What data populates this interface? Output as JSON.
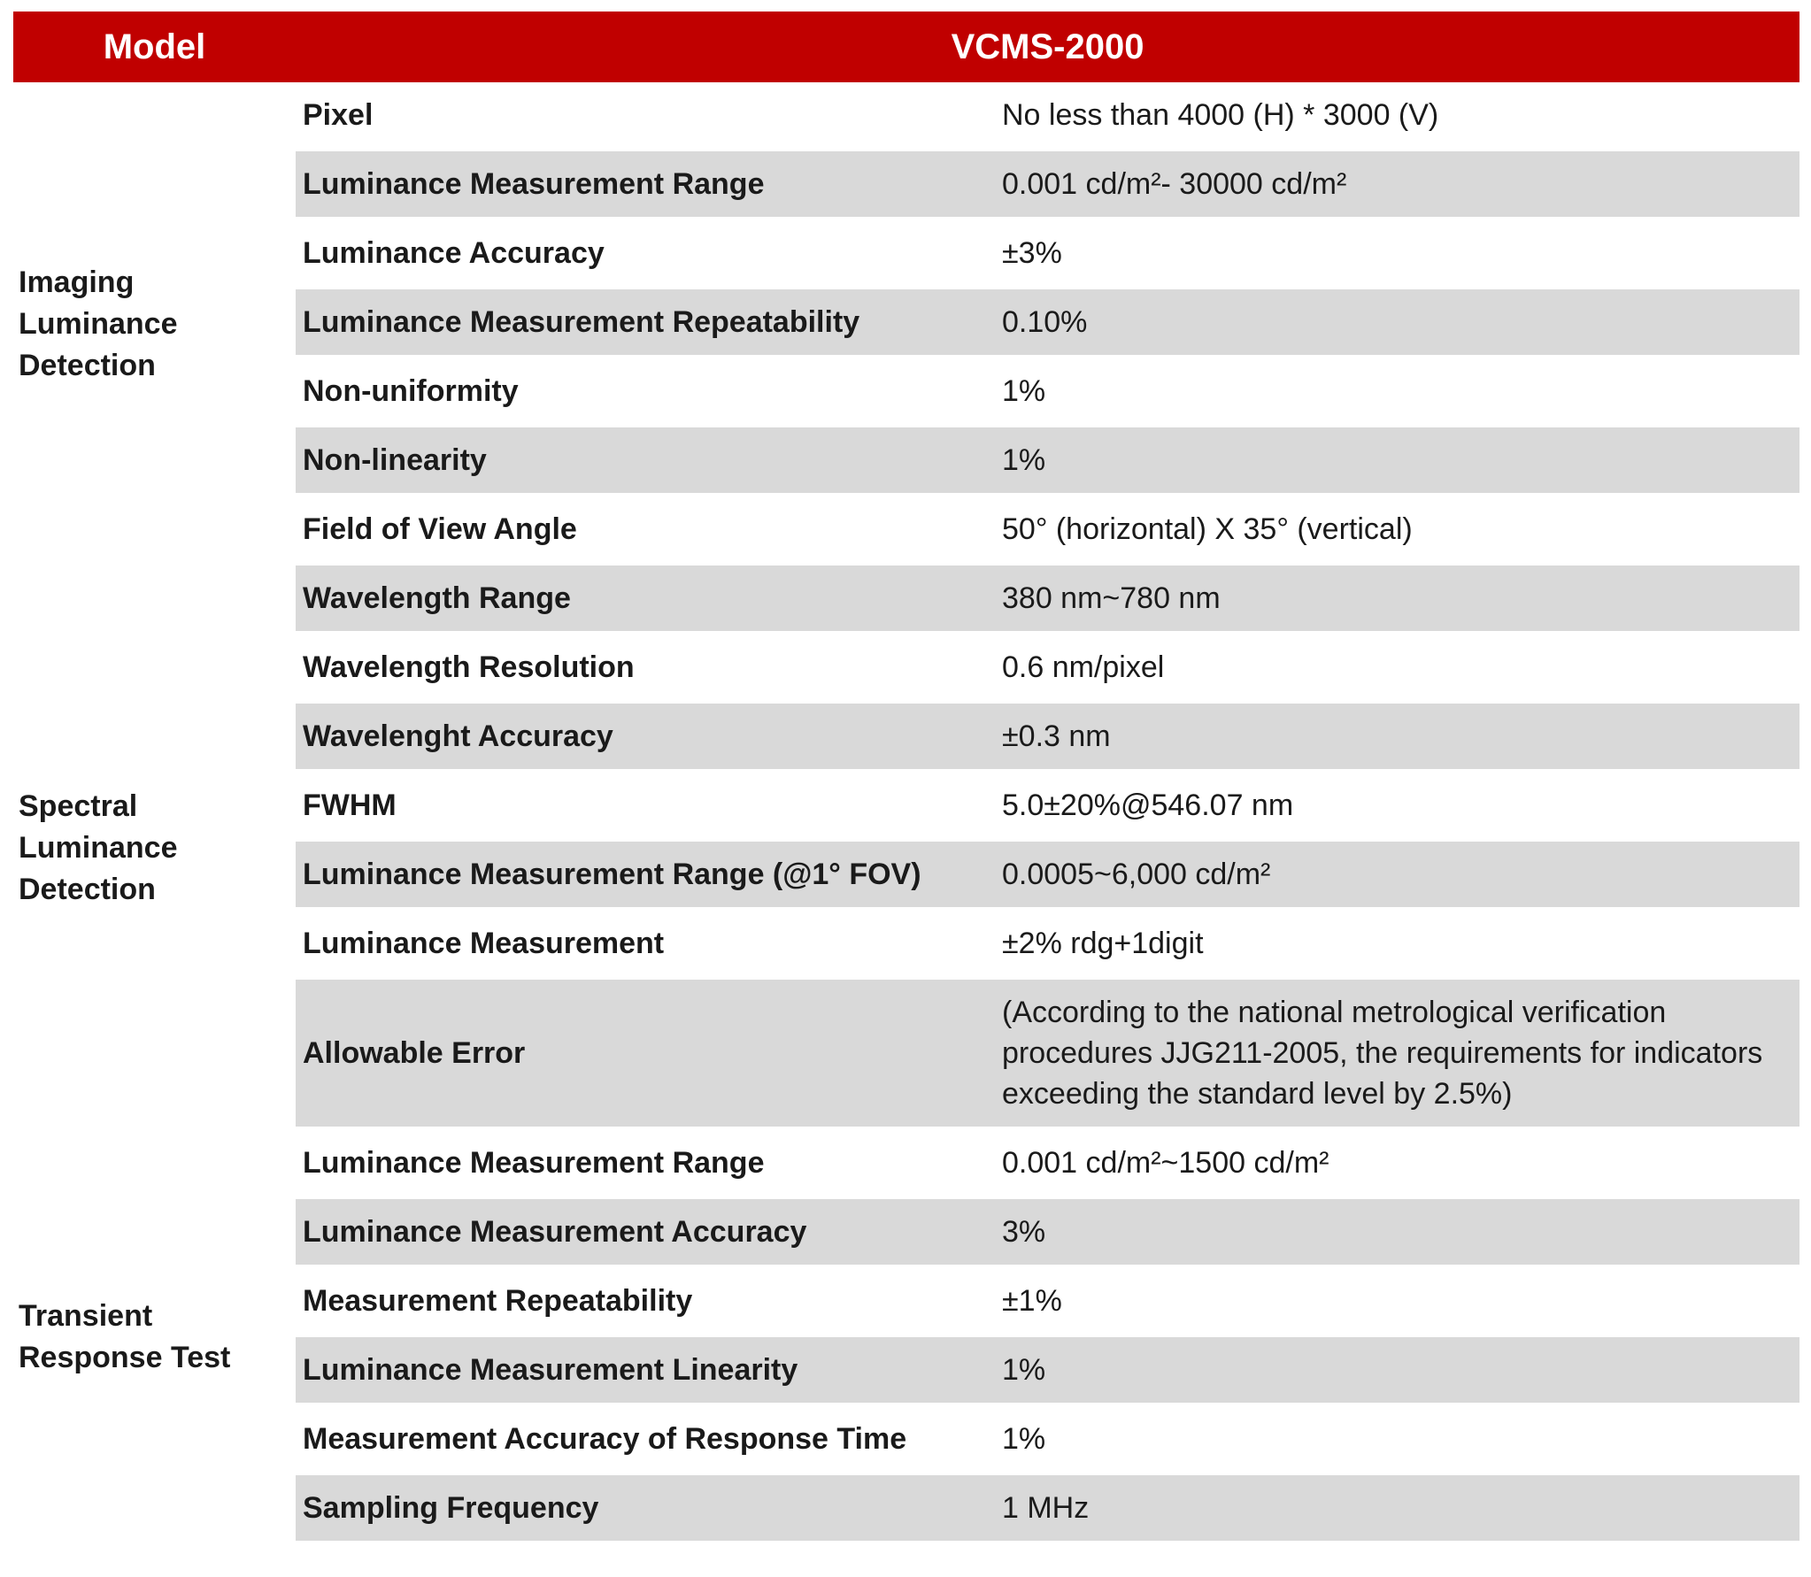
{
  "header": {
    "model_label": "Model",
    "model_value": "VCMS-2000"
  },
  "colors": {
    "header_bg": "#C00000",
    "header_text": "#FFFFFF",
    "row_shade": "#D9D9D9",
    "text": "#1A1A1A"
  },
  "table": {
    "sections": [
      {
        "label": "Imaging Luminance Detection",
        "label_lines": [
          "Imaging",
          "Luminance",
          "Detection"
        ],
        "rows": [
          {
            "parameter": "Pixel",
            "value": "No less than 4000 (H) * 3000 (V)"
          },
          {
            "parameter": "Luminance Measurement Range",
            "value": "0.001 cd/m²- 30000 cd/m²"
          },
          {
            "parameter": "Luminance Accuracy",
            "value": "±3%"
          },
          {
            "parameter": "Luminance Measurement Repeatability",
            "value": "0.10%"
          },
          {
            "parameter": "Non-uniformity",
            "value": "1%"
          },
          {
            "parameter": "Non-linearity",
            "value": "1%"
          },
          {
            "parameter": "Field of View Angle",
            "value": "50° (horizontal) X 35° (vertical)"
          }
        ]
      },
      {
        "label": "Spectral Luminance Detection",
        "label_lines": [
          "Spectral",
          "Luminance",
          "Detection"
        ],
        "rows": [
          {
            "parameter": "Wavelength Range",
            "value": "380 nm~780 nm"
          },
          {
            "parameter": "Wavelength Resolution",
            "value": "0.6 nm/pixel"
          },
          {
            "parameter": "Wavelenght Accuracy",
            "value": "±0.3 nm"
          },
          {
            "parameter": "FWHM",
            "value": "5.0±20%@546.07 nm"
          },
          {
            "parameter": "Luminance Measurement Range (@1° FOV)",
            "value": "0.0005~6,000 cd/m²"
          },
          {
            "parameter": "Luminance Measurement",
            "value": "±2% rdg+1digit"
          },
          {
            "parameter": "Allowable Error",
            "value": "(According to the national metrological verification procedures JJG211-2005, the requirements for indicators exceeding the standard level by 2.5%)"
          }
        ]
      },
      {
        "label": "Transient Response Test",
        "label_lines": [
          "Transient",
          "Response Test"
        ],
        "rows": [
          {
            "parameter": "Luminance Measurement Range",
            "value": "0.001 cd/m²~1500 cd/m²"
          },
          {
            "parameter": "Luminance Measurement Accuracy",
            "value": "3%"
          },
          {
            "parameter": "Measurement Repeatability",
            "value": "±1%"
          },
          {
            "parameter": "Luminance Measurement Linearity",
            "value": "1%"
          },
          {
            "parameter": "Measurement Accuracy of Response Time",
            "value": "1%"
          },
          {
            "parameter": "Sampling Frequency",
            "value": "1 MHz"
          }
        ]
      }
    ]
  }
}
